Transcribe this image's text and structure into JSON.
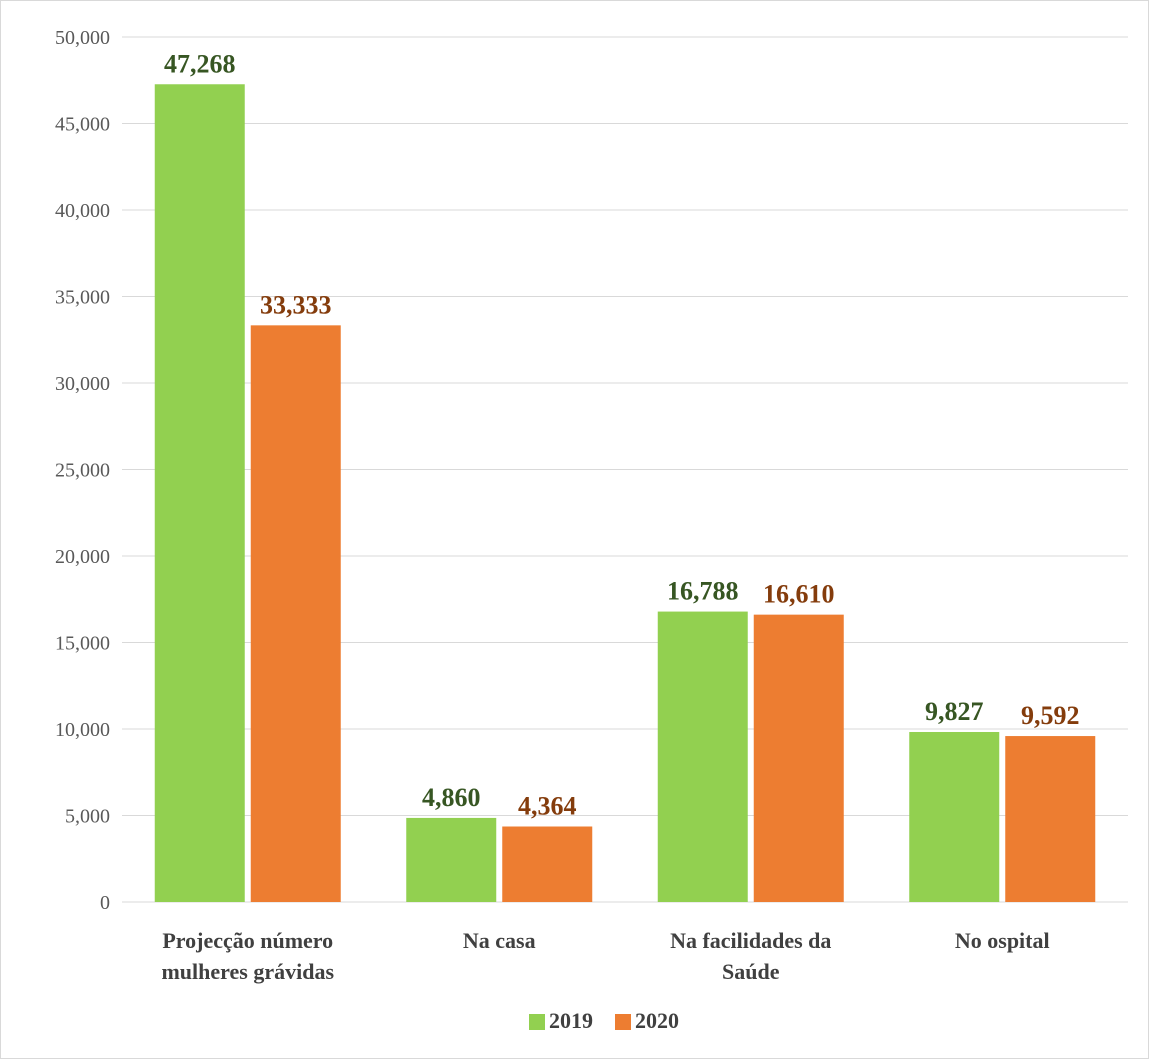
{
  "chart_data": {
    "type": "bar",
    "title": "",
    "xlabel": "",
    "ylabel": "",
    "categories": [
      [
        "Projecção número",
        "mulheres grávidas"
      ],
      [
        "Na casa"
      ],
      [
        "Na facilidades da",
        "Saúde"
      ],
      [
        "No ospital"
      ]
    ],
    "series": [
      {
        "name": "2019",
        "color": "#92d050",
        "label_color": "#375623",
        "values": [
          47268,
          4860,
          16788,
          9827
        ],
        "labels": [
          "47,268",
          "4,860",
          "16,788",
          "9,827"
        ]
      },
      {
        "name": "2020",
        "color": "#ed7d31",
        "label_color": "#843c0c",
        "values": [
          33333,
          4364,
          16610,
          9592
        ],
        "labels": [
          "33,333",
          "4,364",
          "16,610",
          "9,592"
        ]
      }
    ],
    "ylim": [
      0,
      50000
    ],
    "yticks": [
      0,
      5000,
      10000,
      15000,
      20000,
      25000,
      30000,
      35000,
      40000,
      45000,
      50000
    ],
    "ytick_labels": [
      "0",
      "5,000",
      "10,000",
      "15,000",
      "20,000",
      "25,000",
      "30,000",
      "35,000",
      "40,000",
      "45,000",
      "50,000"
    ],
    "grid": true,
    "legend_position": "bottom"
  }
}
